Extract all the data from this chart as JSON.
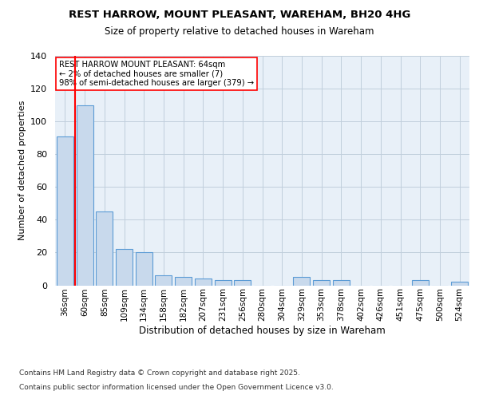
{
  "title": "REST HARROW, MOUNT PLEASANT, WAREHAM, BH20 4HG",
  "subtitle": "Size of property relative to detached houses in Wareham",
  "xlabel": "Distribution of detached houses by size in Wareham",
  "ylabel": "Number of detached properties",
  "footnote1": "Contains HM Land Registry data © Crown copyright and database right 2025.",
  "footnote2": "Contains public sector information licensed under the Open Government Licence v3.0.",
  "annotation_line1": "REST HARROW MOUNT PLEASANT: 64sqm",
  "annotation_line2": "← 2% of detached houses are smaller (7)",
  "annotation_line3": "98% of semi-detached houses are larger (379) →",
  "bar_color": "#c8d9ec",
  "bar_edgecolor": "#5b9bd5",
  "redline_bar_index": 1,
  "ylim": [
    0,
    140
  ],
  "categories": [
    "36sqm",
    "60sqm",
    "85sqm",
    "109sqm",
    "134sqm",
    "158sqm",
    "182sqm",
    "207sqm",
    "231sqm",
    "256sqm",
    "280sqm",
    "304sqm",
    "329sqm",
    "353sqm",
    "378sqm",
    "402sqm",
    "426sqm",
    "451sqm",
    "475sqm",
    "500sqm",
    "524sqm"
  ],
  "values": [
    91,
    110,
    45,
    22,
    20,
    6,
    5,
    4,
    3,
    3,
    0,
    0,
    5,
    3,
    3,
    0,
    0,
    0,
    3,
    0,
    2
  ],
  "background_color": "#ffffff",
  "plot_background": "#e8f0f8",
  "grid_color": "#c0cedc",
  "title_fontsize": 9.5,
  "subtitle_fontsize": 8.5
}
